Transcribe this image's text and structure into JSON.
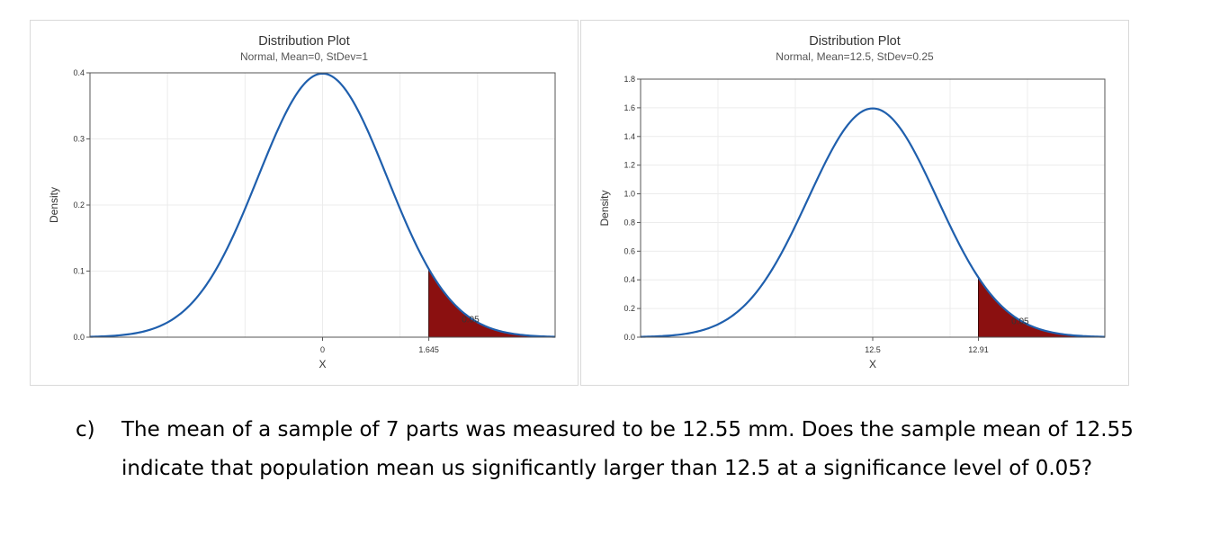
{
  "chart_data": [
    {
      "type": "area",
      "title": "Distribution Plot",
      "subtitle": "Normal, Mean=0, StDev=1",
      "distribution": {
        "mean": 0,
        "stdev": 1
      },
      "xlabel": "X",
      "ylabel": "Density",
      "xlim": [
        -3.6,
        3.6
      ],
      "ylim": [
        0,
        0.4
      ],
      "yticks": [
        0.0,
        0.1,
        0.2,
        0.3,
        0.4
      ],
      "ytick_labels": [
        "0.0",
        "0.1",
        "0.2",
        "0.3",
        "0.4"
      ],
      "xticks": [
        0,
        1.645
      ],
      "xtick_labels": [
        "0",
        "1.645"
      ],
      "shaded_region": {
        "from": 1.645,
        "to": 3.6,
        "area": 0.05,
        "label": "0.05"
      },
      "grid": true
    },
    {
      "type": "area",
      "title": "Distribution Plot",
      "subtitle": "Normal, Mean=12.5, StDev=0.25",
      "distribution": {
        "mean": 12.5,
        "stdev": 0.25
      },
      "xlabel": "X",
      "ylabel": "Density",
      "xlim": [
        11.6,
        13.4
      ],
      "ylim": [
        0,
        1.8
      ],
      "yticks": [
        0.0,
        0.2,
        0.4,
        0.6,
        0.8,
        1.0,
        1.2,
        1.4,
        1.6,
        1.8
      ],
      "ytick_labels": [
        "0.0",
        "0.2",
        "0.4",
        "0.6",
        "0.8",
        "1.0",
        "1.2",
        "1.4",
        "1.6",
        "1.8"
      ],
      "xticks": [
        12.5,
        12.91
      ],
      "xtick_labels": [
        "12.5",
        "12.91"
      ],
      "shaded_region": {
        "from": 12.91,
        "to": 13.4,
        "area": 0.05,
        "label": "0.05"
      },
      "grid": true
    }
  ],
  "colors": {
    "curve": "#1f5fad",
    "shade": "#8b1010",
    "grid": "#ececec",
    "frame": "#555555"
  },
  "question": {
    "marker": "c)",
    "text": "The mean of a sample of 7 parts was measured to be 12.55 mm.  Does the sample mean of 12.55 indicate that population mean us significantly larger than 12.5 at a significance level of 0.05?"
  }
}
